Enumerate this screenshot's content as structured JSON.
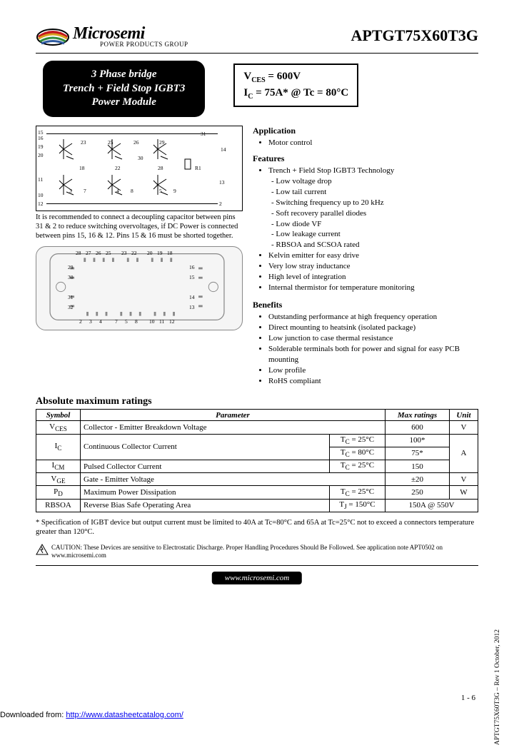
{
  "header": {
    "brand": "Microsemi",
    "subtitle": "POWER PRODUCTS GROUP",
    "part": "APTGT75X60T3G",
    "logo_colors": {
      "blue": "#2e5aa0",
      "red": "#c4181f",
      "green": "#2f8b3a",
      "gold": "#d8a020",
      "black": "#000000"
    }
  },
  "title_box": {
    "l1": "3 Phase bridge",
    "l2": "Trench + Field Stop IGBT3",
    "l3": "Power Module"
  },
  "spec_box": {
    "l1_pre": "V",
    "l1_sub": "CES",
    "l1_post": " = 600V",
    "l2_pre": "I",
    "l2_sub": "C",
    "l2_post": " = 75A* @ Tc = 80°C"
  },
  "schematic_note": "It is recommended to connect a decoupling capacitor between pins 31 & 2 to reduce switching overvoltages, if DC Power is connected between pins 15, 16 & 12. Pins 15 & 16 must be shorted together.",
  "schematic_pins": {
    "left": [
      "15",
      "16",
      "19",
      "20",
      "11",
      "10",
      "12"
    ],
    "top": [
      "23",
      "25",
      "26",
      "29",
      "31",
      "14"
    ],
    "inner": [
      "18",
      "22",
      "28",
      "30",
      "R1"
    ],
    "bottom": [
      "3",
      "7",
      "4",
      "8",
      "5",
      "9",
      "13",
      "2"
    ]
  },
  "package_pins": {
    "top": [
      "28",
      "27",
      "26",
      "25",
      "23",
      "22",
      "20",
      "19",
      "18"
    ],
    "left": [
      "29",
      "30",
      "31",
      "32"
    ],
    "right": [
      "16",
      "15",
      "14",
      "13"
    ],
    "bottom": [
      "2",
      "3",
      "4",
      "7",
      "5",
      "8",
      "10",
      "11",
      "12"
    ]
  },
  "application": {
    "heading": "Application",
    "items": [
      "Motor control"
    ]
  },
  "features": {
    "heading": "Features",
    "items": [
      {
        "t": "Trench + Field Stop IGBT3 Technology",
        "sub": [
          "Low voltage drop",
          "Low tail current",
          "Switching frequency up to 20 kHz",
          "Soft recovery parallel diodes",
          "Low diode VF",
          "Low leakage current",
          "RBSOA and SCSOA rated"
        ]
      },
      {
        "t": "Kelvin emitter for easy drive"
      },
      {
        "t": "Very low stray inductance"
      },
      {
        "t": "High level of integration"
      },
      {
        "t": "Internal thermistor for temperature monitoring"
      }
    ]
  },
  "benefits": {
    "heading": "Benefits",
    "items": [
      "Outstanding performance at high frequency operation",
      "Direct mounting to heatsink (isolated package)",
      "Low junction to case thermal resistance",
      "Solderable terminals both for power and signal for easy PCB mounting",
      "Low profile",
      "RoHS compliant"
    ]
  },
  "ratings": {
    "title": "Absolute maximum ratings",
    "headers": [
      "Symbol",
      "Parameter",
      "",
      "Max ratings",
      "Unit"
    ],
    "rows": [
      {
        "sym": "V<sub>CES</sub>",
        "param": "Collector - Emitter Breakdown Voltage",
        "cond": "",
        "max": "600",
        "unit": "V",
        "span_cond": true
      },
      {
        "sym": "I<sub>C</sub>",
        "param": "Continuous Collector Current",
        "cond": "T<sub>C</sub> = 25°C",
        "max": "100*",
        "unit": "A",
        "row1": true
      },
      {
        "cond": "T<sub>C</sub> = 80°C",
        "max": "75*",
        "row2": true
      },
      {
        "sym": "I<sub>CM</sub>",
        "param": "Pulsed Collector Current",
        "cond": "T<sub>C</sub> = 25°C",
        "max": "150",
        "unit_cont": true
      },
      {
        "sym": "V<sub>GE</sub>",
        "param": "Gate - Emitter Voltage",
        "cond": "",
        "max": "±20",
        "unit": "V",
        "span_cond": true
      },
      {
        "sym": "P<sub>D</sub>",
        "param": "Maximum Power Dissipation",
        "cond": "T<sub>C</sub> = 25°C",
        "max": "250",
        "unit": "W"
      },
      {
        "sym": "RBSOA",
        "param": "Reverse Bias Safe Operating Area",
        "cond": "T<sub>J</sub> = 150°C",
        "max": "150A @ 550V",
        "unit": "",
        "span_unit": true
      }
    ]
  },
  "footnote": "* Specification of IGBT device but output current must be limited to 40A at Tc=80°C and 65A at Tc=25°C not to exceed a connectors temperature greater than 120°C.",
  "caution": "CAUTION: These Devices are sensitive to Electrostatic Discharge. Proper Handling Procedures Should Be Followed. See application note APT0502 on www.microsemi.com",
  "url_pill": "www.microsemi.com",
  "page_num": "1 - 6",
  "side_text": "APTGT75X60T3G – Rev 1 October, 2012",
  "download": {
    "pre": "Downloaded from: ",
    "url": "http://www.datasheetcatalog.com/"
  }
}
